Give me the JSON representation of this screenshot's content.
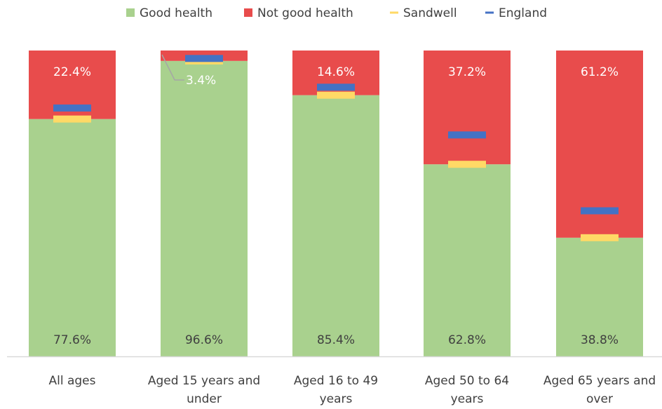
{
  "chart_data": {
    "type": "bar",
    "stacked": true,
    "categories": [
      [
        "All ages"
      ],
      [
        "Aged 15 years and",
        "under"
      ],
      [
        "Aged 16 to 49",
        "years"
      ],
      [
        "Aged 50 to 64",
        "years"
      ],
      [
        "Aged 65 years and",
        "over"
      ]
    ],
    "series": [
      {
        "name": "Good health",
        "color": "#a9d18e",
        "values": [
          77.6,
          96.6,
          85.4,
          62.8,
          38.8
        ],
        "labels": [
          "77.6%",
          "96.6%",
          "85.4%",
          "62.8%",
          "38.8%"
        ]
      },
      {
        "name": "Not good health",
        "color": "#e84c4c",
        "values": [
          22.4,
          3.4,
          14.6,
          37.2,
          61.2
        ],
        "labels": [
          "22.4%",
          "3.4%",
          "14.6%",
          "37.2%",
          "61.2%"
        ]
      }
    ],
    "markers": [
      {
        "name": "Sandwell",
        "color": "#ffd966",
        "values": [
          22.4,
          3.4,
          14.6,
          37.2,
          61.2
        ]
      },
      {
        "name": "England",
        "color": "#4472c4",
        "values": [
          18.8,
          2.6,
          12.0,
          27.6,
          52.4
        ]
      }
    ],
    "legend": [
      {
        "name": "Good health",
        "symbol": "square",
        "color": "#a9d18e"
      },
      {
        "name": "Not good health",
        "symbol": "square",
        "color": "#e84c4c"
      },
      {
        "name": "Sandwell",
        "symbol": "dash",
        "color": "#ffd966"
      },
      {
        "name": "England",
        "symbol": "dash",
        "color": "#4472c4"
      }
    ],
    "legend_position": "top",
    "ylim": [
      0,
      100
    ],
    "grid": false
  }
}
